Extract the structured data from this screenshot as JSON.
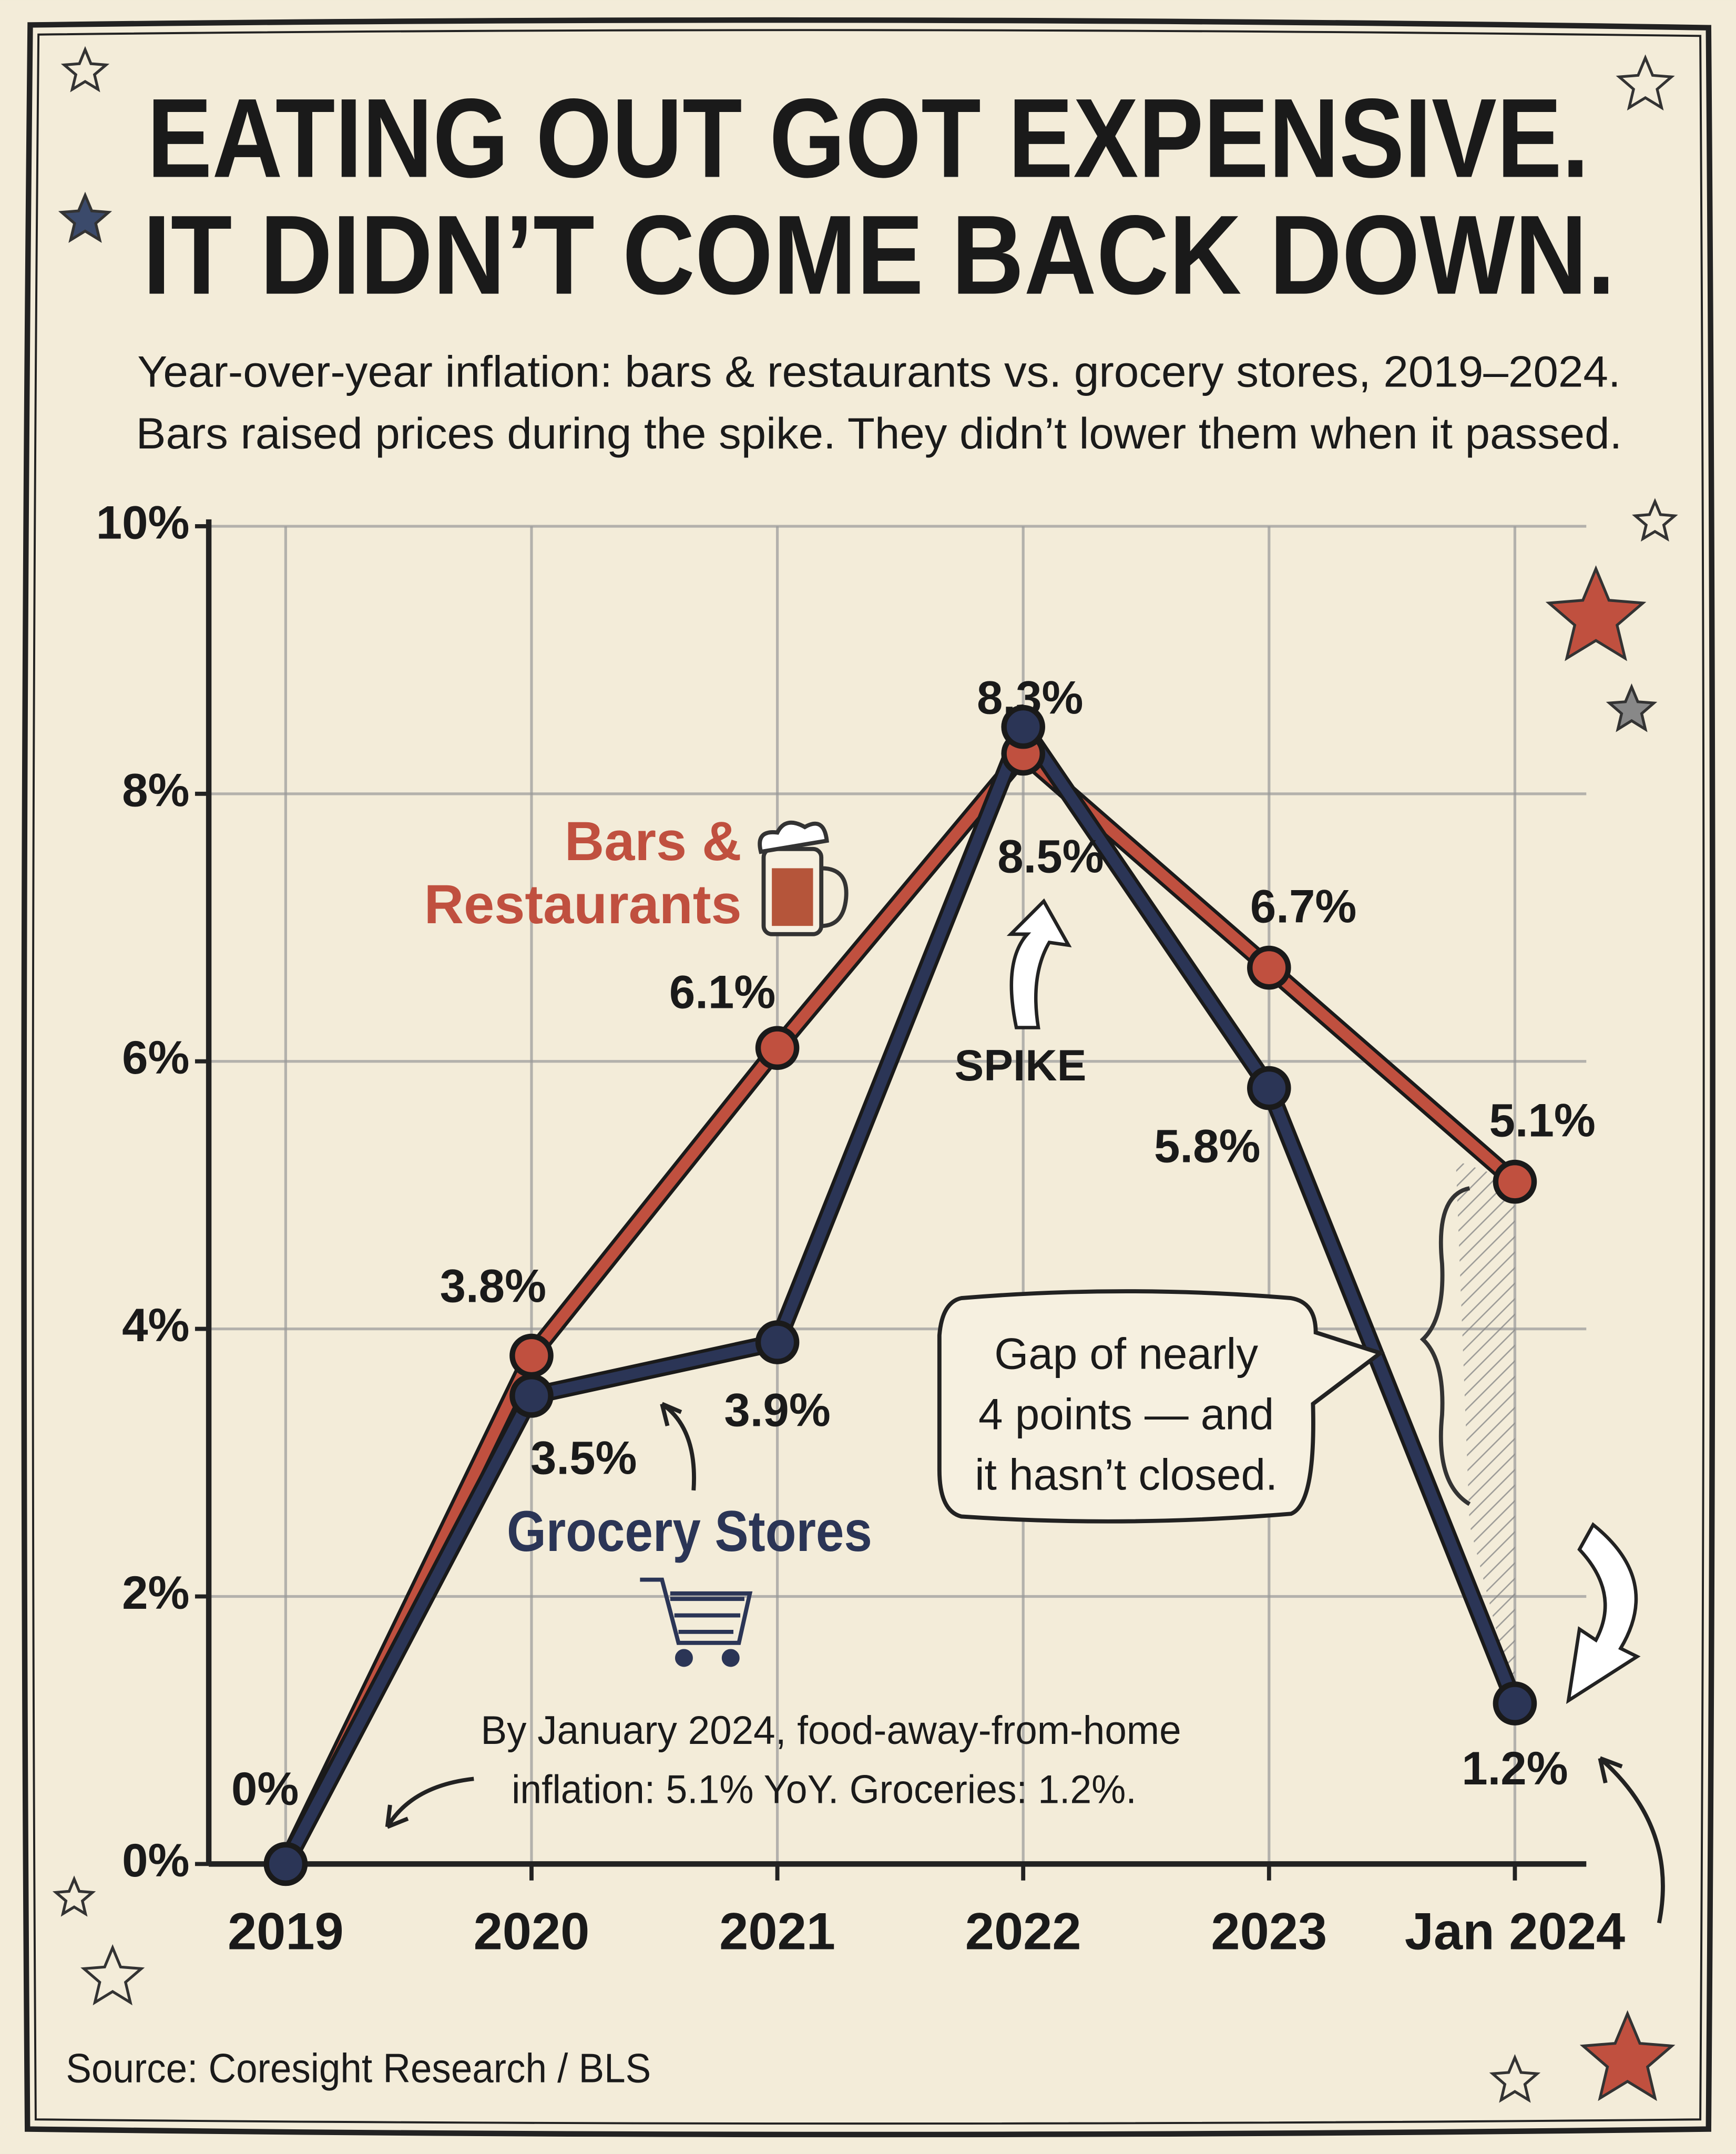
{
  "chart_data": {
    "type": "line",
    "title": [
      "EATING OUT GOT EXPENSIVE.",
      "IT DIDN’T COME BACK DOWN."
    ],
    "subtitle": [
      "Year-over-year inflation: bars & restaurants vs. grocery stores, 2019–2024.",
      "Bars raised prices during the spike. They didn’t lower them when it passed."
    ],
    "categories": [
      "2019",
      "2020",
      "2021",
      "2022",
      "2023",
      "Jan 2024"
    ],
    "series": [
      {
        "name": "Bars & Restaurants",
        "color": "#c0503f",
        "values": [
          0,
          3.8,
          6.1,
          8.3,
          6.7,
          5.1
        ],
        "value_labels": [
          "0%",
          "3.8%",
          "6.1%",
          "8.3%",
          "6.7%",
          "5.1%"
        ]
      },
      {
        "name": "Grocery Stores",
        "color": "#2b3556",
        "values": [
          0,
          3.5,
          3.9,
          8.5,
          5.8,
          1.2
        ],
        "value_labels": [
          null,
          "3.5%",
          "3.9%",
          "8.5%",
          "5.8%",
          "1.2%"
        ]
      }
    ],
    "ylim": [
      0,
      10
    ],
    "yticks": [
      {
        "value": 0,
        "label": "0%"
      },
      {
        "value": 2,
        "label": "2%"
      },
      {
        "value": 4,
        "label": "4%"
      },
      {
        "value": 6,
        "label": "6%"
      },
      {
        "value": 8,
        "label": "8%"
      },
      {
        "value": 10,
        "label": "10%"
      }
    ],
    "grid": true,
    "annotations": {
      "spike": "SPIKE",
      "gap": [
        "Gap of nearly",
        "4 points — and",
        "it hasn’t closed."
      ],
      "note": [
        "By January 2024, food-away-from-home",
        "inflation: 5.1% YoY. Groceries: 1.2%."
      ]
    },
    "source": "Source: Coresight Research / BLS"
  }
}
